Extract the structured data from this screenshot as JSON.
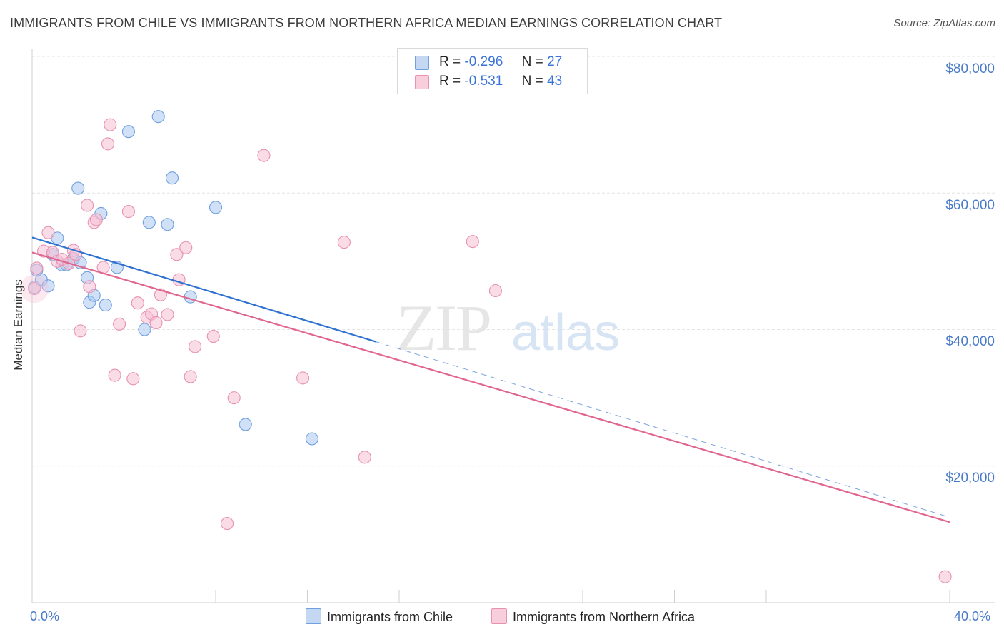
{
  "header": {
    "title": "IMMIGRANTS FROM CHILE VS IMMIGRANTS FROM NORTHERN AFRICA MEDIAN EARNINGS CORRELATION CHART",
    "source": "Source: ZipAtlas.com"
  },
  "watermark": {
    "zip": "ZIP",
    "atlas": "atlas"
  },
  "legend": {
    "r_label": "R =",
    "n_label": "N =",
    "rows": [
      {
        "r": "-0.296",
        "n": "27"
      },
      {
        "r": "-0.531",
        "n": "43"
      }
    ]
  },
  "bottom_legend": {
    "chile": "Immigrants from Chile",
    "nafrica": "Immigrants from Northern Africa"
  },
  "chart_data": {
    "type": "scatter",
    "title": "IMMIGRANTS FROM CHILE VS IMMIGRANTS FROM NORTHERN AFRICA MEDIAN EARNINGS CORRELATION CHART",
    "xlabel": "",
    "ylabel": "Median Earnings",
    "xlim": [
      0,
      40
    ],
    "ylim": [
      0,
      80000
    ],
    "x_tick_labels": [
      "0.0%",
      "40.0%"
    ],
    "y_ticks": [
      {
        "value": 20000,
        "label": "$20,000"
      },
      {
        "value": 40000,
        "label": "$40,000"
      },
      {
        "value": 60000,
        "label": "$60,000"
      },
      {
        "value": 80000,
        "label": "$80,000"
      }
    ],
    "grid": true,
    "legend_position": "top-center",
    "series": [
      {
        "name": "Immigrants from Chile",
        "color": "#6fa0e0",
        "fill": "#aac8f0",
        "r": -0.296,
        "n": 27,
        "trend": {
          "x0": 0,
          "y0": 53500,
          "x1": 15,
          "y1": 38200,
          "dash_to_x": 40,
          "dash_to_y": 12500
        },
        "points": [
          [
            0.1,
            46200
          ],
          [
            0.2,
            48700
          ],
          [
            0.4,
            47300
          ],
          [
            0.7,
            46400
          ],
          [
            0.9,
            51000
          ],
          [
            1.1,
            53400
          ],
          [
            1.3,
            49500
          ],
          [
            1.5,
            49500
          ],
          [
            1.8,
            50400
          ],
          [
            2.0,
            60700
          ],
          [
            2.1,
            49800
          ],
          [
            2.4,
            47600
          ],
          [
            2.5,
            44000
          ],
          [
            2.7,
            45000
          ],
          [
            3.0,
            57000
          ],
          [
            3.2,
            43600
          ],
          [
            3.7,
            49100
          ],
          [
            4.2,
            69000
          ],
          [
            4.9,
            40000
          ],
          [
            5.1,
            55700
          ],
          [
            5.5,
            71200
          ],
          [
            5.9,
            55400
          ],
          [
            6.1,
            62200
          ],
          [
            6.9,
            44800
          ],
          [
            8.0,
            57900
          ],
          [
            9.3,
            26100
          ],
          [
            12.2,
            24000
          ]
        ]
      },
      {
        "name": "Immigrants from Northern Africa",
        "color": "#e891b0",
        "fill": "#f5c0d3",
        "r": -0.531,
        "n": 43,
        "trend": {
          "x0": 0,
          "y0": 51300,
          "x1": 40,
          "y1": 11800
        },
        "points": [
          [
            0.1,
            46000
          ],
          [
            0.2,
            49000
          ],
          [
            0.5,
            51500
          ],
          [
            0.7,
            54200
          ],
          [
            0.9,
            51300
          ],
          [
            1.1,
            50000
          ],
          [
            1.3,
            50300
          ],
          [
            1.6,
            49700
          ],
          [
            1.8,
            51600
          ],
          [
            1.9,
            51000
          ],
          [
            2.1,
            39800
          ],
          [
            2.4,
            58200
          ],
          [
            2.5,
            46300
          ],
          [
            2.7,
            55700
          ],
          [
            2.8,
            56100
          ],
          [
            3.1,
            49100
          ],
          [
            3.3,
            67200
          ],
          [
            3.4,
            70000
          ],
          [
            3.6,
            33300
          ],
          [
            3.8,
            40800
          ],
          [
            4.2,
            57300
          ],
          [
            4.4,
            32800
          ],
          [
            4.6,
            43900
          ],
          [
            5.0,
            41800
          ],
          [
            5.2,
            42300
          ],
          [
            5.4,
            41000
          ],
          [
            5.6,
            45100
          ],
          [
            5.9,
            42200
          ],
          [
            6.3,
            51000
          ],
          [
            6.4,
            47300
          ],
          [
            6.7,
            52000
          ],
          [
            6.9,
            33100
          ],
          [
            7.1,
            37500
          ],
          [
            7.9,
            39000
          ],
          [
            8.5,
            11600
          ],
          [
            8.8,
            30000
          ],
          [
            10.1,
            65500
          ],
          [
            11.8,
            32900
          ],
          [
            13.6,
            52800
          ],
          [
            14.5,
            21300
          ],
          [
            19.2,
            52900
          ],
          [
            20.2,
            45700
          ],
          [
            39.8,
            3800
          ]
        ]
      }
    ]
  }
}
